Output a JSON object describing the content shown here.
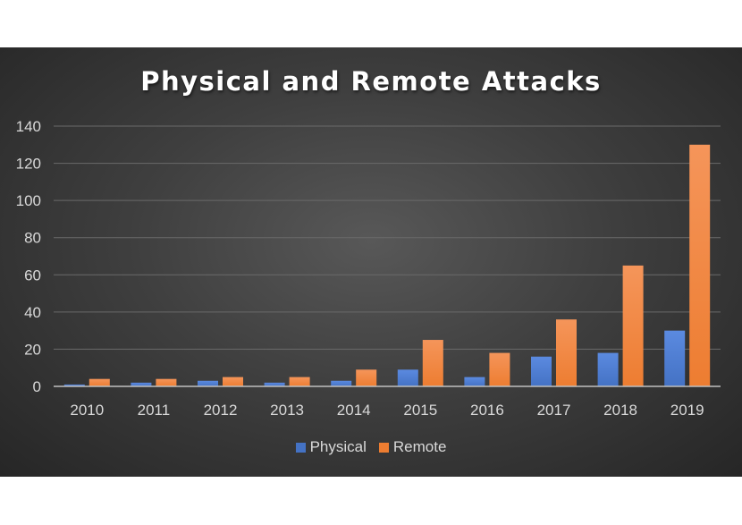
{
  "chart_data": {
    "type": "bar",
    "title": "Physical and Remote Attacks",
    "categories": [
      "2010",
      "2011",
      "2012",
      "2013",
      "2014",
      "2015",
      "2016",
      "2017",
      "2018",
      "2019"
    ],
    "series": [
      {
        "name": "Physical",
        "color": "#4472c4",
        "values": [
          1,
          2,
          3,
          2,
          3,
          9,
          5,
          16,
          18,
          30
        ]
      },
      {
        "name": "Remote",
        "color": "#ed7d31",
        "values": [
          4,
          4,
          5,
          5,
          9,
          25,
          18,
          36,
          65,
          130
        ]
      }
    ],
    "yticks": [
      0,
      20,
      40,
      60,
      80,
      100,
      120,
      140
    ],
    "ylim": [
      0,
      140
    ],
    "grid": true,
    "legend_position": "bottom"
  }
}
